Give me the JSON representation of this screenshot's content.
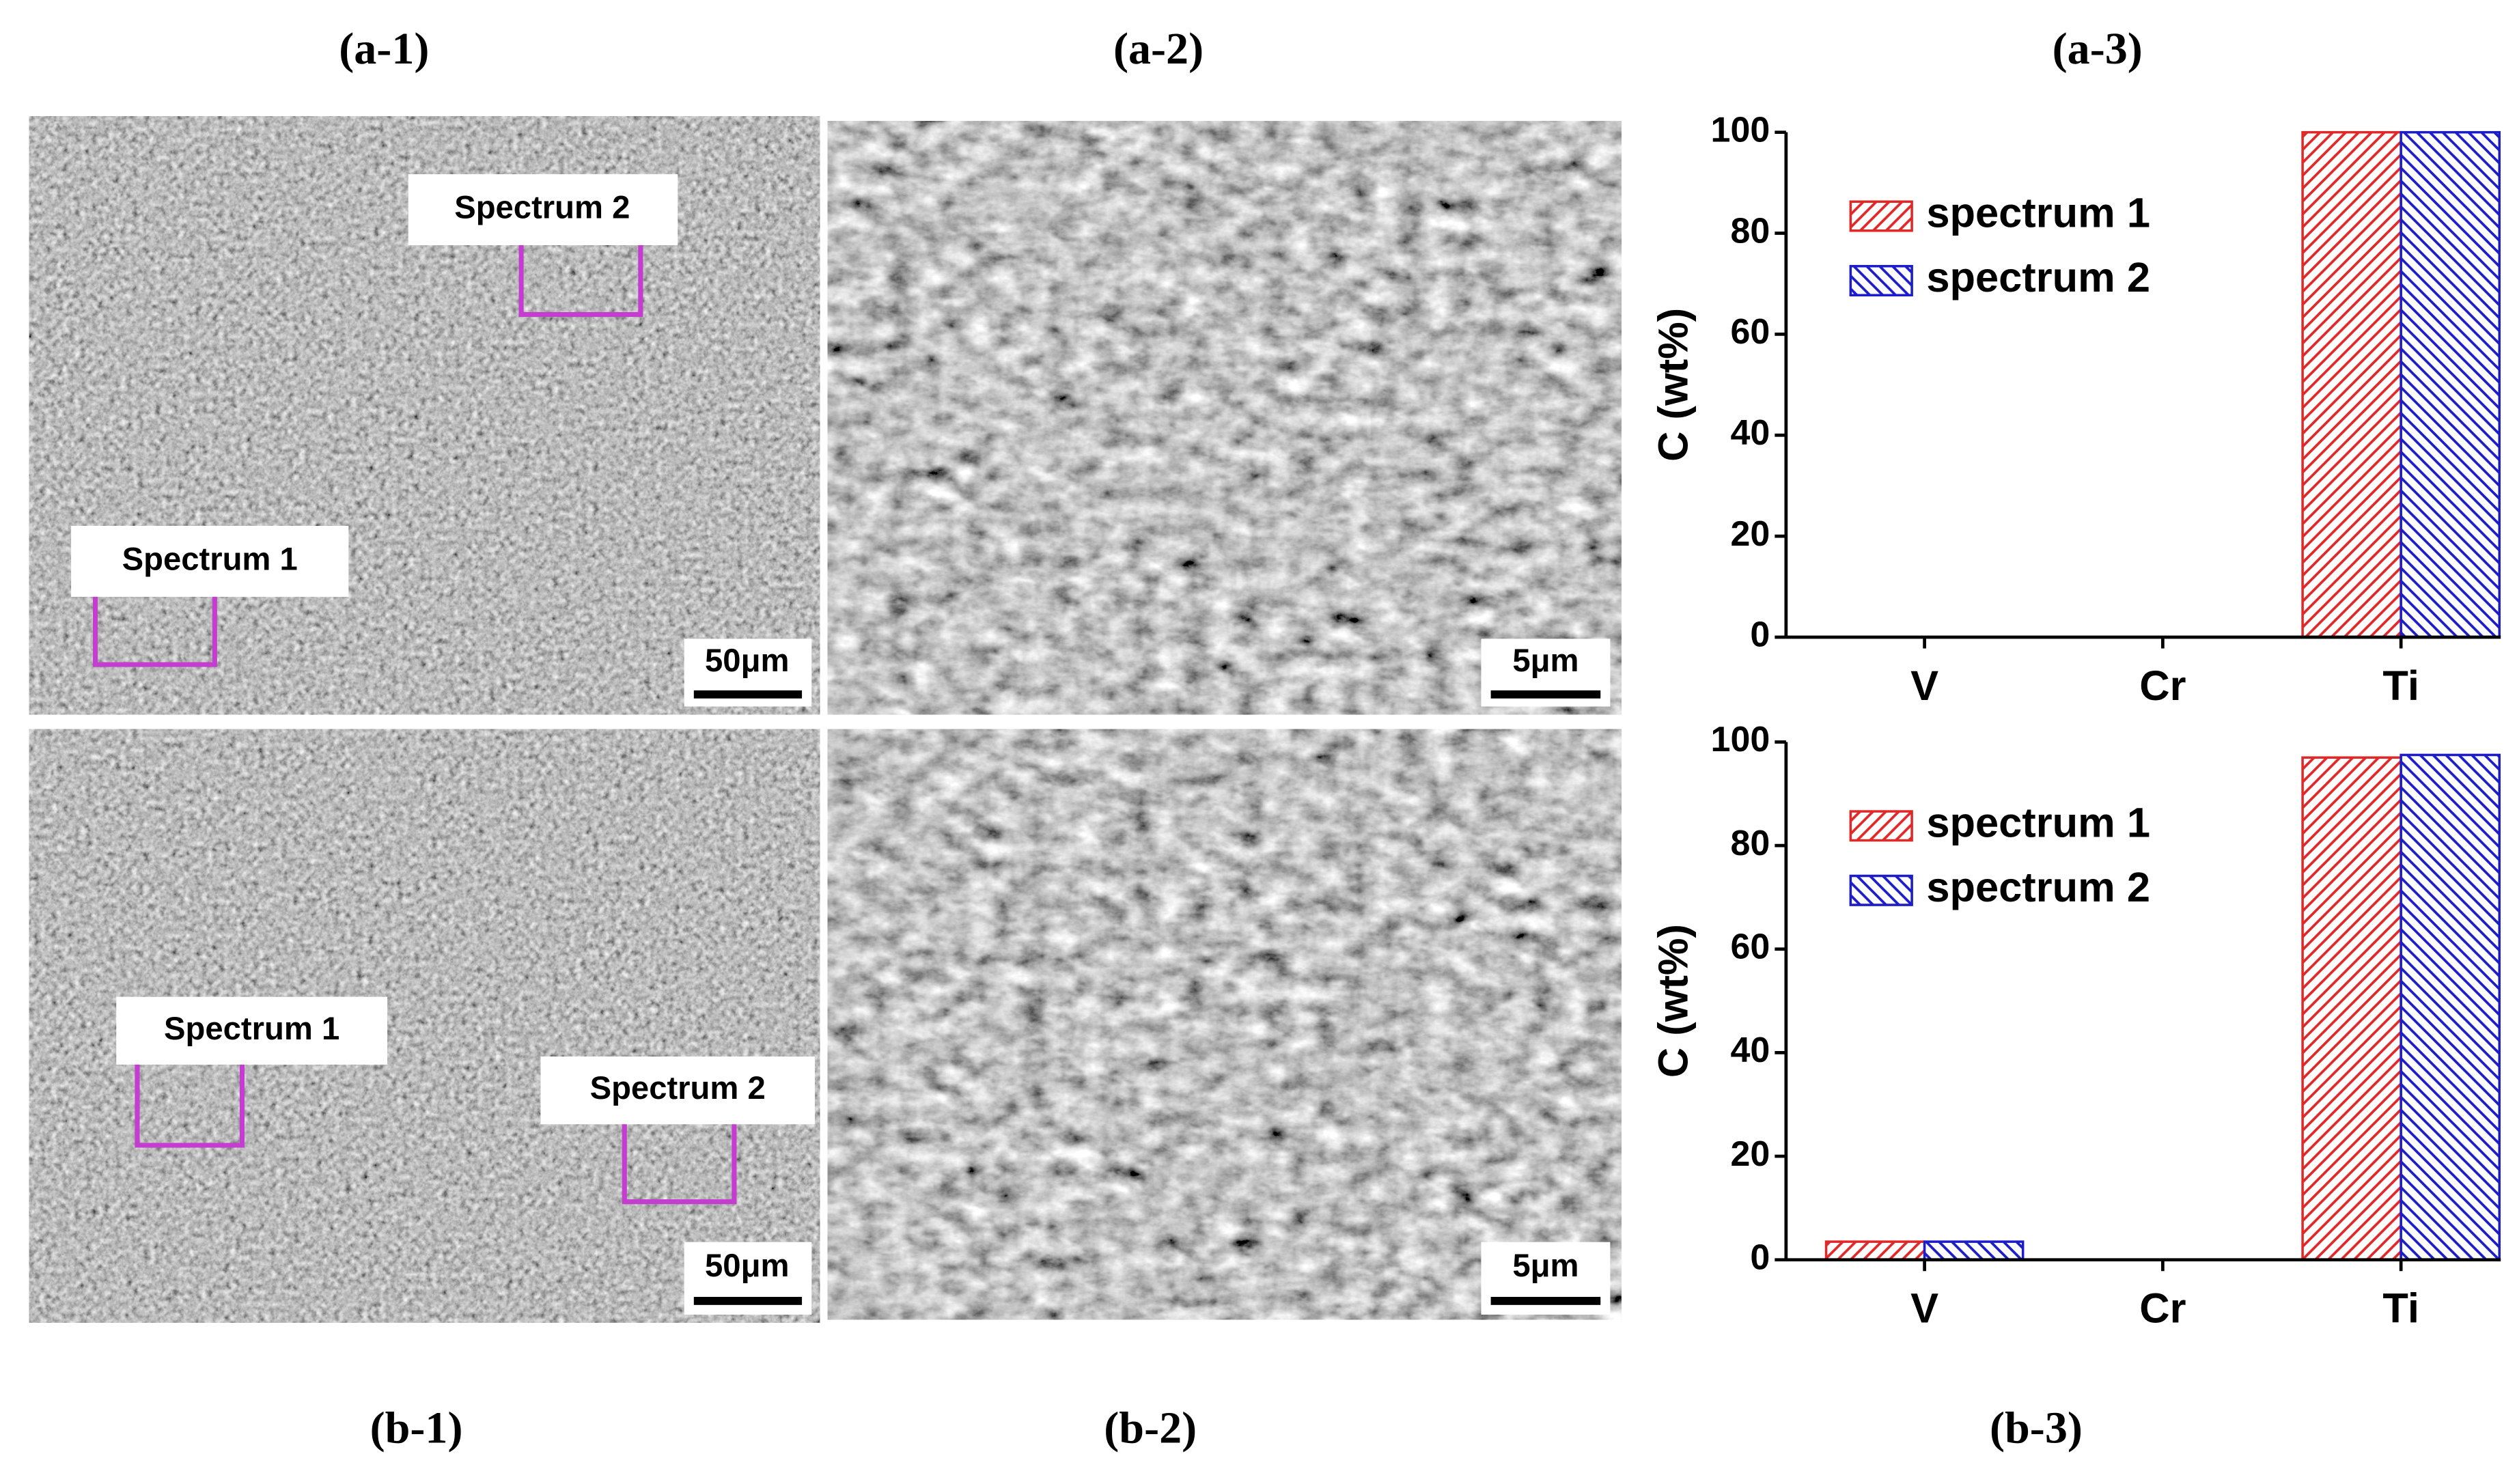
{
  "figure": {
    "panel_labels": [
      "(a-1)",
      "(a-2)",
      "(a-3)",
      "(b-1)",
      "(b-2)",
      "(b-3)"
    ],
    "images": [
      {
        "spectra": [
          "Spectrum 2",
          "Spectrum 1"
        ],
        "scale_bar": "50μm"
      },
      {
        "scale_bar": "5μm"
      },
      {
        "spectra": [
          "Spectrum 1",
          "Spectrum 2"
        ],
        "scale_bar": "50μm"
      },
      {
        "scale_bar": "5μm"
      }
    ]
  },
  "chart_data": [
    {
      "type": "bar",
      "ylabel": "C (wt%)",
      "categories": [
        "V",
        "Cr",
        "Ti"
      ],
      "series": [
        {
          "name": "spectrum 1",
          "color": "#e02828",
          "hatch": "/",
          "values": [
            0,
            0,
            100
          ]
        },
        {
          "name": "spectrum 2",
          "color": "#1c1cc8",
          "hatch": "\\",
          "values": [
            0,
            0,
            100
          ]
        }
      ],
      "ylim": [
        0,
        100
      ],
      "yticks": [
        0,
        20,
        40,
        60,
        80,
        100
      ],
      "legend": "upper left"
    },
    {
      "type": "bar",
      "ylabel": "C (wt%)",
      "categories": [
        "V",
        "Cr",
        "Ti"
      ],
      "series": [
        {
          "name": "spectrum 1",
          "color": "#e02828",
          "hatch": "/",
          "values": [
            3.5,
            0,
            97
          ]
        },
        {
          "name": "spectrum 2",
          "color": "#1c1cc8",
          "hatch": "\\",
          "values": [
            3.5,
            0,
            97.5
          ]
        }
      ],
      "ylim": [
        0,
        100
      ],
      "yticks": [
        0,
        20,
        40,
        60,
        80,
        100
      ],
      "legend": "upper left"
    }
  ]
}
